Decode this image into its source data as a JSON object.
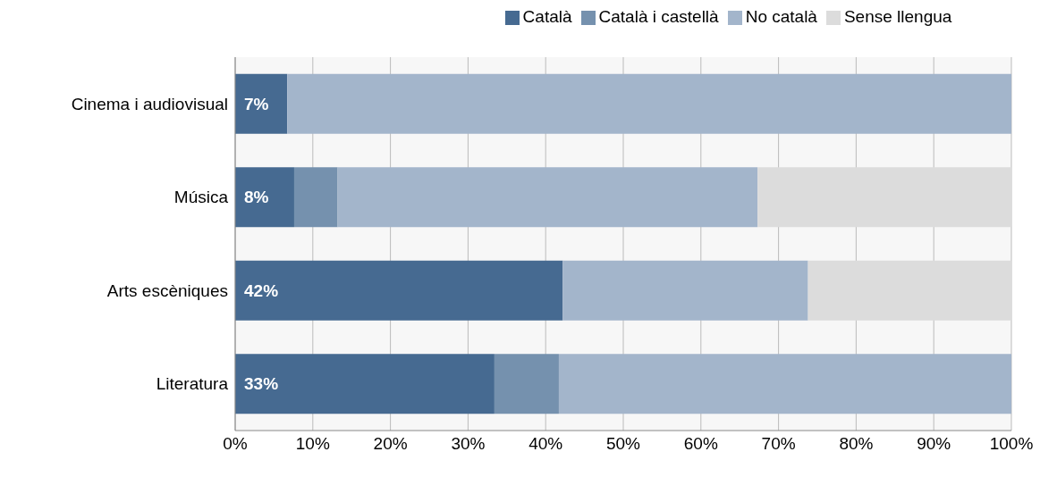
{
  "chart_data": {
    "type": "bar",
    "orientation": "horizontal",
    "stacked": true,
    "categories": [
      "Cinema i audiovisual",
      "Música",
      "Arts escèniques",
      "Literatura"
    ],
    "series": [
      {
        "name": "Català",
        "color": "#466a91",
        "values": [
          6.7,
          7.6,
          42.2,
          33.4
        ],
        "value_labels": [
          "7%",
          "8%",
          "42%",
          "33%"
        ]
      },
      {
        "name": "Català i castellà",
        "color": "#7591ae",
        "values": [
          0,
          5.6,
          0,
          8.3
        ]
      },
      {
        "name": "No català",
        "color": "#a3b5cb",
        "values": [
          93.3,
          54.1,
          31.6,
          58.3
        ]
      },
      {
        "name": "Sense llengua",
        "color": "#dcdcdc",
        "values": [
          0,
          32.7,
          26.2,
          0
        ]
      }
    ],
    "xlim": [
      0,
      100
    ],
    "xticks": [
      {
        "value": 0,
        "label": "0%"
      },
      {
        "value": 10,
        "label": "10%"
      },
      {
        "value": 20,
        "label": "20%"
      },
      {
        "value": 30,
        "label": "30%"
      },
      {
        "value": 40,
        "label": "40%"
      },
      {
        "value": 50,
        "label": "50%"
      },
      {
        "value": 60,
        "label": "60%"
      },
      {
        "value": 70,
        "label": "70%"
      },
      {
        "value": 80,
        "label": "80%"
      },
      {
        "value": 90,
        "label": "90%"
      },
      {
        "value": 100,
        "label": "100%"
      }
    ],
    "grid": "x",
    "legend": "top"
  }
}
